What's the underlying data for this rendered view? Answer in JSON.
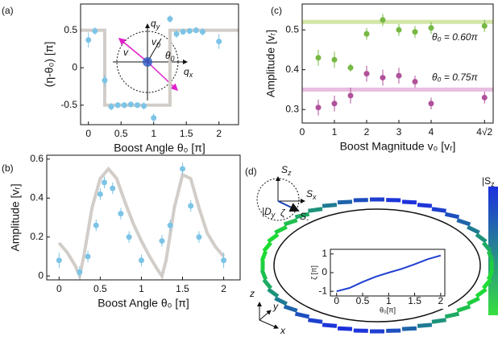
{
  "chart_data": [
    {
      "type": "scatter",
      "panel": "(a)",
      "xlabel": "Boost Angle θ₀ [π]",
      "ylabel": "(η-θ₀) [π]",
      "xlim": [
        -0.12,
        2.3
      ],
      "ylim": [
        -0.76,
        0.85
      ],
      "xticks": [
        0,
        0.5,
        1,
        1.5,
        2
      ],
      "yticks": [
        -0.5,
        0,
        0.5
      ],
      "lines": [
        {
          "color": "#d2cdc8",
          "x": [
            -0.12,
            0.25,
            0.25,
            1.25,
            1.25,
            2.3
          ],
          "values": [
            0.5,
            0.5,
            -0.5,
            -0.5,
            0.5,
            0.5
          ]
        }
      ],
      "series": [
        {
          "color": "#7cc4e6",
          "x": [
            0,
            0.1,
            0.25,
            0.35,
            0.45,
            0.55,
            0.65,
            0.75,
            0.85,
            1.0,
            1.25,
            1.35,
            1.45,
            1.55,
            1.65,
            1.75,
            2.0
          ],
          "values": [
            0.37,
            0.49,
            -0.17,
            -0.52,
            -0.5,
            -0.5,
            -0.49,
            -0.5,
            -0.51,
            -0.67,
            0.65,
            0.45,
            0.48,
            0.49,
            0.5,
            0.48,
            0.35
          ],
          "errors": [
            0.1,
            0.05,
            0.08,
            0.05,
            0.04,
            0.04,
            0.04,
            0.04,
            0.05,
            0.06,
            0.05,
            0.05,
            0.04,
            0.04,
            0.04,
            0.05,
            0.1
          ]
        }
      ],
      "inset_labels": [
        {
          "text": "q",
          "sub": "y"
        },
        {
          "text": "q",
          "sub": "x"
        },
        {
          "text": "v"
        },
        {
          "text": "v",
          "sub": "0"
        },
        {
          "text": "θ",
          "sub": "0"
        }
      ]
    },
    {
      "type": "scatter",
      "panel": "(b)",
      "xlabel": "Boost Angle θ₀ [π]",
      "ylabel": "Amplitude [vᵣ]",
      "xlim": [
        -0.15,
        2.2
      ],
      "ylim": [
        -0.02,
        0.62
      ],
      "xticks": [
        0,
        0.5,
        1,
        1.5,
        2
      ],
      "yticks": [
        0,
        0.2,
        0.4,
        0.6
      ],
      "lines": [
        {
          "color": "#d2cdc8",
          "x": [
            0,
            0.1,
            0.2,
            0.25,
            0.3,
            0.4,
            0.5,
            0.6,
            0.7,
            0.8,
            0.9,
            1.0,
            1.1,
            1.2,
            1.25,
            1.3,
            1.4,
            1.5,
            1.6,
            1.7,
            1.8,
            1.9,
            2.0
          ],
          "values": [
            0.17,
            0.12,
            0.05,
            0,
            0.1,
            0.35,
            0.5,
            0.55,
            0.5,
            0.38,
            0.27,
            0.18,
            0.1,
            0.03,
            0,
            0.08,
            0.35,
            0.52,
            0.5,
            0.35,
            0.22,
            0.15,
            0.1
          ]
        }
      ],
      "series": [
        {
          "color": "#7cc4e6",
          "x": [
            0,
            0.25,
            0.35,
            0.45,
            0.5,
            0.55,
            0.65,
            0.75,
            0.85,
            1.0,
            1.25,
            1.35,
            1.5,
            1.6,
            1.7,
            2.0
          ],
          "values": [
            0.08,
            0.02,
            0.1,
            0.26,
            0.42,
            0.48,
            0.45,
            0.32,
            0.2,
            0.08,
            0.18,
            0.26,
            0.55,
            0.36,
            0.2,
            0.08
          ],
          "errors": [
            0.04,
            0.03,
            0.03,
            0.03,
            0.03,
            0.03,
            0.03,
            0.03,
            0.03,
            0.03,
            0.03,
            0.03,
            0.03,
            0.03,
            0.03,
            0.04
          ]
        }
      ]
    },
    {
      "type": "scatter",
      "panel": "(c)",
      "xlabel": "Boost Magnitude v₀ [vᵣ]",
      "ylabel": "Amplitude [vᵣ]",
      "xlim": [
        0,
        5.925
      ],
      "ylim": [
        0.266,
        0.565
      ],
      "xticks": [
        0,
        1,
        2,
        3,
        4,
        {
          "value": 5.657,
          "label": "4√2"
        }
      ],
      "yticks": [
        0.3,
        0.4,
        0.5
      ],
      "hlines": [
        {
          "value": 0.52,
          "color": "#d3e6a6"
        },
        {
          "value": 0.35,
          "color": "#e8bde0"
        }
      ],
      "series": [
        {
          "name": "θ₀ = 0.60π",
          "color": "#76b843",
          "x": [
            0.5,
            1,
            1.5,
            2,
            2.5,
            3,
            3.5,
            4,
            5.657
          ],
          "values": [
            0.43,
            0.425,
            0.405,
            0.49,
            0.525,
            0.5,
            0.495,
            0.505,
            0.51
          ],
          "errors": [
            0.02,
            0.02,
            0.01,
            0.015,
            0.015,
            0.015,
            0.015,
            0.015,
            0.015
          ]
        },
        {
          "name": "θ₀ = 0.75π",
          "color": "#b0519b",
          "x": [
            0.5,
            1,
            1.5,
            2,
            2.5,
            3,
            3.5,
            4,
            5.657
          ],
          "values": [
            0.305,
            0.315,
            0.335,
            0.39,
            0.38,
            0.385,
            0.37,
            0.315,
            0.33
          ],
          "errors": [
            0.02,
            0.02,
            0.02,
            0.02,
            0.02,
            0.02,
            0.015,
            0.015,
            0.015
          ]
        }
      ]
    },
    {
      "type": "line",
      "panel": "(d)",
      "xlabel": "θ₀[π]",
      "ylabel": "ζ [π]",
      "xlim": [
        -0.12,
        2.08
      ],
      "ylim": [
        -1.25,
        1.25
      ],
      "xticks": [
        0,
        0.5,
        1,
        1.5,
        2
      ],
      "yticks": [
        -1,
        0,
        1
      ],
      "lines": [
        {
          "color": "#1f3fd0",
          "x": [
            0,
            0.25,
            0.5,
            0.75,
            1,
            1.25,
            1.5,
            1.75,
            2
          ],
          "values": [
            -1,
            -0.82,
            -0.5,
            -0.22,
            0,
            0.2,
            0.45,
            0.72,
            0.92
          ]
        }
      ],
      "series": []
    }
  ],
  "diagram": {
    "labels": [
      {
        "text": "S",
        "sub": "z"
      },
      {
        "text": "S",
        "sub": "x"
      },
      {
        "text": "|D",
        "sub": "y"
      },
      {
        "text": "ζ"
      },
      {
        "text": "S",
        "sub": "-"
      },
      {
        "text": "z"
      },
      {
        "text": "y"
      },
      {
        "text": "x"
      },
      {
        "text": "|S",
        "sub": "z"
      }
    ]
  }
}
